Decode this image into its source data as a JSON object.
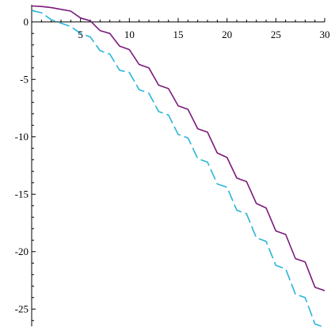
{
  "chart_data": {
    "type": "line",
    "title": "",
    "xlabel": "",
    "ylabel": "",
    "xlim": [
      0,
      30
    ],
    "ylim": [
      -26.5,
      1.5
    ],
    "grid": false,
    "legend": "none",
    "x_ticks": [
      5,
      10,
      15,
      20,
      25,
      30
    ],
    "x_tick_labels": [
      "5",
      "10",
      "15",
      "20",
      "25",
      "30"
    ],
    "y_ticks": [
      0,
      -5,
      -10,
      -15,
      -20,
      -25
    ],
    "y_tick_labels": [
      "0",
      "-5",
      "-10",
      "-15",
      "-20",
      "-25"
    ],
    "x": [
      0,
      1,
      2,
      3,
      4,
      5,
      6,
      7,
      8,
      9,
      10,
      11,
      12,
      13,
      14,
      15,
      16,
      17,
      18,
      19,
      20,
      21,
      22,
      23,
      24,
      25,
      26,
      27,
      28,
      29,
      30
    ],
    "series": [
      {
        "color": "#7b1a7b",
        "dash": "solid",
        "values": [
          1.4,
          1.35,
          1.25,
          1.1,
          0.95,
          0.35,
          0.1,
          -0.75,
          -1.0,
          -2.1,
          -2.4,
          -3.7,
          -4.0,
          -5.5,
          -5.8,
          -7.3,
          -7.6,
          -9.3,
          -9.6,
          -11.4,
          -11.8,
          -13.6,
          -13.9,
          -15.8,
          -16.2,
          -18.2,
          -18.5,
          -20.6,
          -20.9,
          -23.1,
          -23.4
        ]
      },
      {
        "color": "#29b5d9",
        "dash": "dashed",
        "values": [
          1.0,
          0.8,
          0.2,
          -0.1,
          -0.4,
          -1.0,
          -1.3,
          -2.5,
          -2.8,
          -4.2,
          -4.4,
          -5.9,
          -6.2,
          -7.8,
          -8.1,
          -9.8,
          -10.1,
          -11.9,
          -12.2,
          -14.1,
          -14.4,
          -16.4,
          -16.7,
          -18.8,
          -19.1,
          -21.2,
          -21.5,
          -23.7,
          -24.0,
          -26.3,
          -26.6
        ]
      }
    ]
  }
}
